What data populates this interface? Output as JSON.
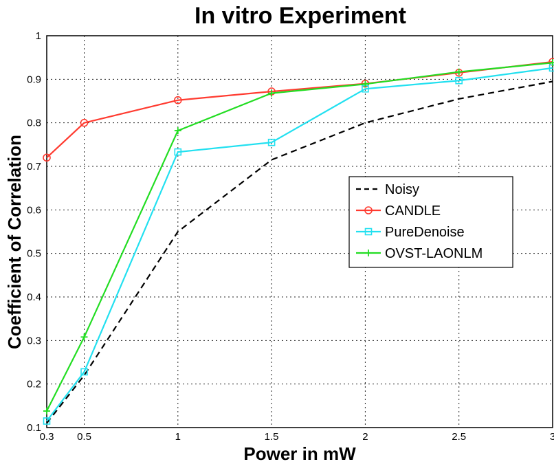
{
  "chart_data": {
    "type": "line",
    "title": "In vitro Experiment",
    "xlabel": "Power in mW",
    "ylabel": "Coefficient of Correlation",
    "x": [
      0.3,
      0.5,
      1,
      1.5,
      2,
      2.5,
      3
    ],
    "x_ticks": [
      "0.3",
      "0.5",
      "1",
      "1.5",
      "2",
      "2.5",
      "3"
    ],
    "y_ticks": [
      "0.1",
      "0.2",
      "0.3",
      "0.4",
      "0.5",
      "0.6",
      "0.7",
      "0.8",
      "0.9",
      "1"
    ],
    "xlim": [
      0.3,
      3
    ],
    "ylim": [
      0.1,
      1
    ],
    "grid": true,
    "legend_position": "center-right",
    "series": [
      {
        "name": "Noisy",
        "color": "#000000",
        "style": "dashed",
        "marker": "none",
        "values": [
          0.11,
          0.22,
          0.55,
          0.715,
          0.8,
          0.855,
          0.895
        ]
      },
      {
        "name": "CANDLE",
        "color": "#ff3b30",
        "style": "solid",
        "marker": "circle",
        "values": [
          0.72,
          0.8,
          0.852,
          0.872,
          0.89,
          0.915,
          0.94
        ]
      },
      {
        "name": "PureDenoise",
        "color": "#22e0f0",
        "style": "solid",
        "marker": "square",
        "values": [
          0.115,
          0.228,
          0.733,
          0.755,
          0.878,
          0.897,
          0.926
        ]
      },
      {
        "name": "OVST-LAONLM",
        "color": "#22dd22",
        "style": "solid",
        "marker": "plus",
        "values": [
          0.138,
          0.308,
          0.782,
          0.868,
          0.889,
          0.917,
          0.938
        ]
      }
    ]
  }
}
